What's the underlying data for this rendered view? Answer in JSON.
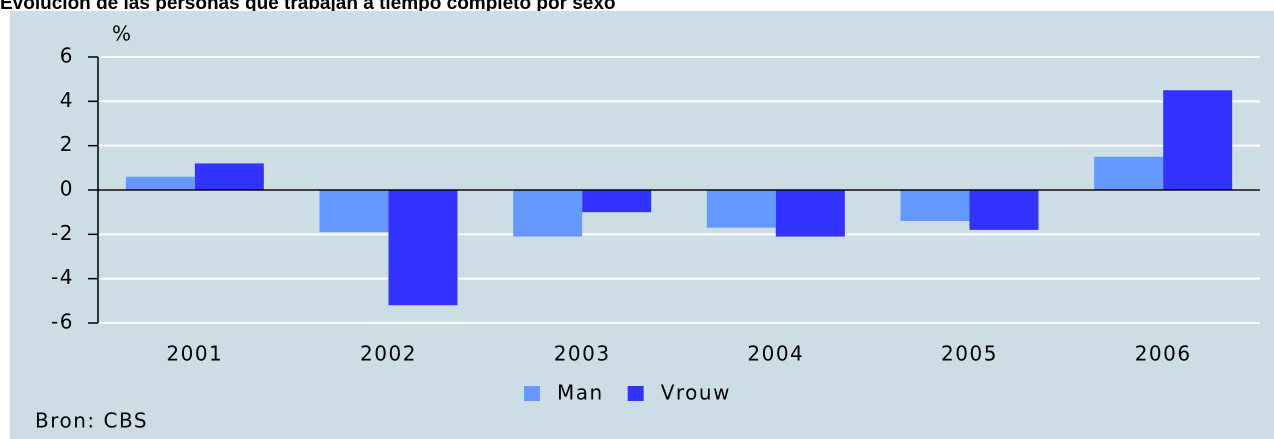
{
  "chart_data": {
    "type": "bar",
    "title": "Evolución de las personas que trabajan a tiempo completo por sexo",
    "y_label": "%",
    "source": "Bron: CBS",
    "categories": [
      "2001",
      "2002",
      "2003",
      "2004",
      "2005",
      "2006"
    ],
    "series": [
      {
        "name": "Man",
        "color": "#6699ff",
        "values": [
          0.6,
          -1.9,
          -2.1,
          -1.7,
          -1.4,
          1.5
        ]
      },
      {
        "name": "Vrouw",
        "color": "#3333ff",
        "values": [
          1.2,
          -5.2,
          -1.0,
          -2.1,
          -1.8,
          4.5
        ]
      }
    ],
    "ylim": [
      -6,
      6
    ],
    "yticks": [
      -6,
      -4,
      -2,
      0,
      2,
      4,
      6
    ],
    "grid": true,
    "legend": "bottom"
  }
}
